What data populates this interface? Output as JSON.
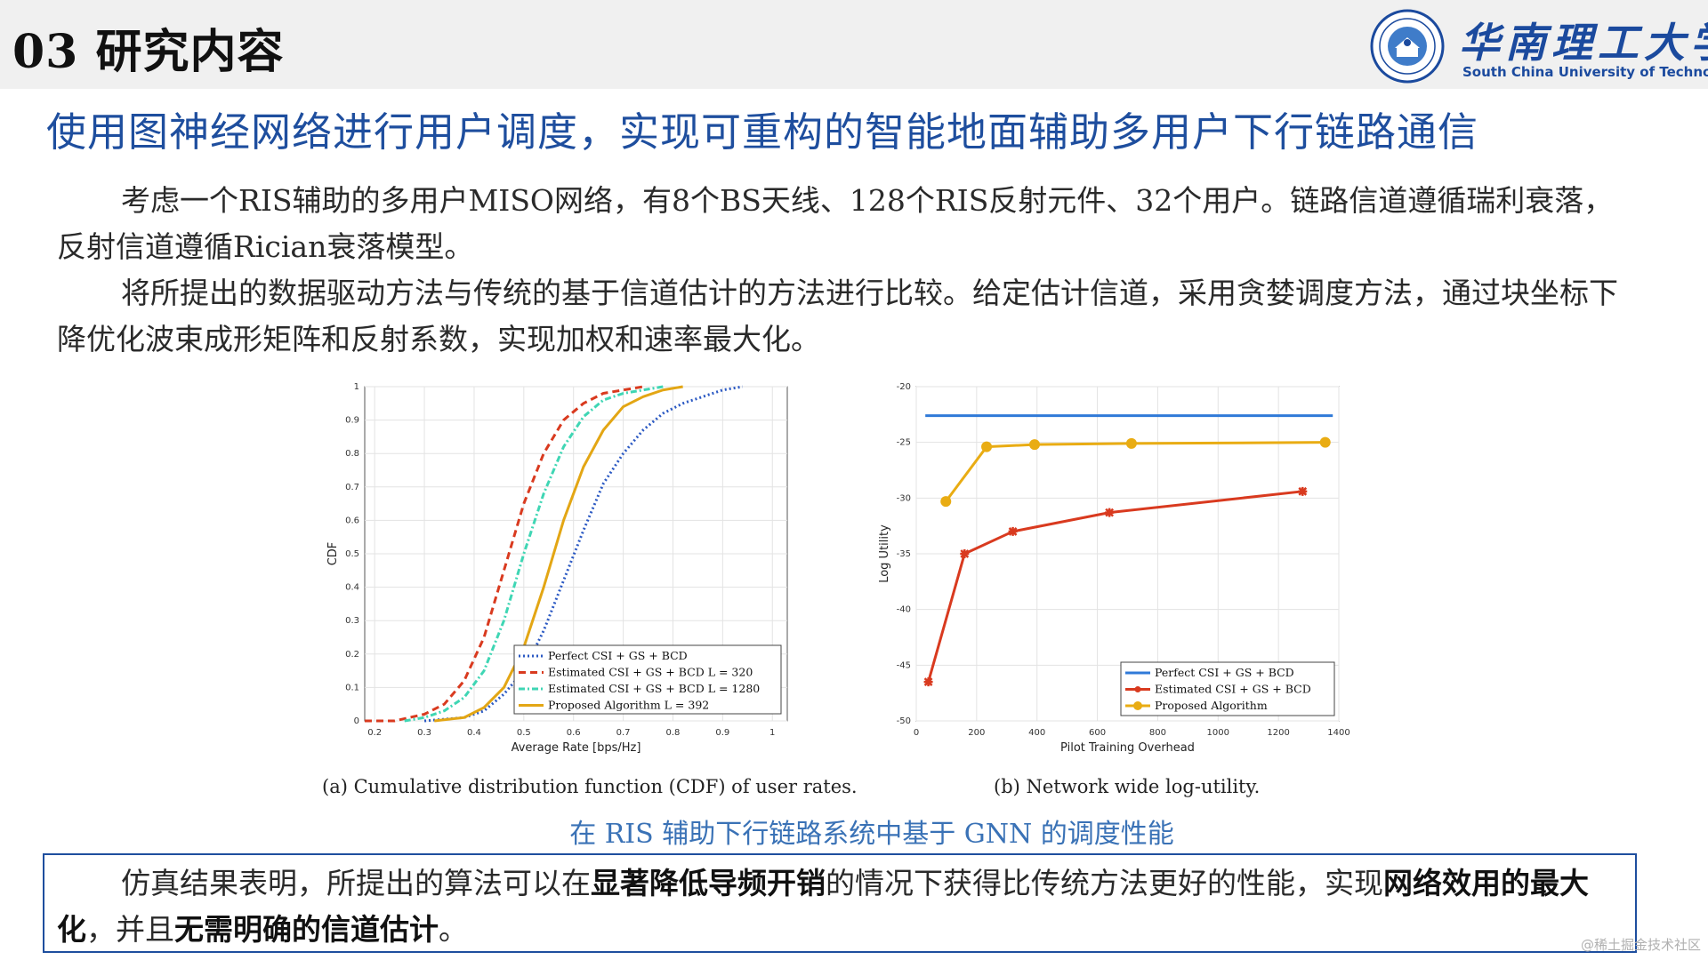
{
  "header": {
    "section_title": "03 研究内容",
    "university_cn": "华南理工大学",
    "university_en": "South China University of Technology"
  },
  "headline": "使用图神经网络进行用户调度，实现可重构的智能地面辅助多用户下行链路通信",
  "paragraphs": [
    "考虑一个RIS辅助的多用户MISO网络，有8个BS天线、128个RIS反射元件、32个用户。链路信道遵循瑞利衰落，反射信道遵循Rician衰落模型。",
    "将所提出的数据驱动方法与传统的基于信道估计的方法进行比较。给定估计信道，采用贪婪调度方法，通过块坐标下降优化波束成形矩阵和反射系数，实现加权和速率最大化。"
  ],
  "figure_caption_a": "(a) Cumulative distribution function (CDF) of user rates.",
  "figure_caption_b": "(b) Network wide log-utility.",
  "figure_title": "在 RIS 辅助下行链路系统中基于 GNN 的调度性能",
  "conclusion": {
    "part1": "仿真结果表明，所提出的算法可以在",
    "bold1": "显著降低导频开销",
    "part2": "的情况下获得比传统方法更好的性能，实现",
    "bold2": "网络效用的最大化",
    "part3": "，并且",
    "bold3": "无需明确的信道估计",
    "part4": "。"
  },
  "watermark": "@稀土掘金技术社区",
  "chart_data": [
    {
      "type": "line",
      "xlabel": "Average Rate [bps/Hz]",
      "ylabel": "CDF",
      "xlim": [
        0.18,
        1.03
      ],
      "ylim": [
        0,
        1
      ],
      "xticks": [
        "0.2",
        "0.3",
        "0.4",
        "0.5",
        "0.6",
        "0.7",
        "0.8",
        "0.9",
        "1"
      ],
      "yticks": [
        "0",
        "0.1",
        "0.2",
        "0.3",
        "0.4",
        "0.5",
        "0.6",
        "0.7",
        "0.8",
        "0.9",
        "1"
      ],
      "grid": true,
      "legend_position": "bottom-right",
      "series": [
        {
          "name": "Perfect CSI + GS + BCD",
          "color": "#2b59c3",
          "dash": "2,3",
          "x": [
            0.3,
            0.38,
            0.42,
            0.46,
            0.5,
            0.54,
            0.58,
            0.62,
            0.66,
            0.7,
            0.74,
            0.78,
            0.82,
            0.86,
            0.9,
            0.94
          ],
          "y": [
            0,
            0.01,
            0.03,
            0.08,
            0.15,
            0.27,
            0.42,
            0.57,
            0.71,
            0.8,
            0.87,
            0.92,
            0.95,
            0.97,
            0.99,
            1
          ]
        },
        {
          "name": "Estimated CSI + GS + BCD L = 320",
          "color": "#d93a1f",
          "dash": "8,5",
          "x": [
            0.18,
            0.24,
            0.3,
            0.34,
            0.38,
            0.42,
            0.46,
            0.5,
            0.54,
            0.58,
            0.62,
            0.66,
            0.7,
            0.74
          ],
          "y": [
            0,
            0,
            0.02,
            0.05,
            0.12,
            0.25,
            0.45,
            0.65,
            0.8,
            0.9,
            0.95,
            0.98,
            0.99,
            1
          ]
        },
        {
          "name": "Estimated CSI + GS + BCD L = 1280",
          "color": "#3fd6b4",
          "dash": "7,3,2,3",
          "x": [
            0.26,
            0.3,
            0.34,
            0.38,
            0.42,
            0.46,
            0.5,
            0.54,
            0.58,
            0.62,
            0.66,
            0.7,
            0.74,
            0.78
          ],
          "y": [
            0,
            0.01,
            0.03,
            0.07,
            0.15,
            0.3,
            0.5,
            0.68,
            0.82,
            0.91,
            0.96,
            0.98,
            0.99,
            1
          ]
        },
        {
          "name": "Proposed Algorithm L = 392",
          "color": "#e3a614",
          "dash": "",
          "x": [
            0.32,
            0.38,
            0.42,
            0.46,
            0.5,
            0.54,
            0.58,
            0.62,
            0.66,
            0.7,
            0.74,
            0.78,
            0.82
          ],
          "y": [
            0,
            0.01,
            0.04,
            0.1,
            0.22,
            0.4,
            0.6,
            0.76,
            0.87,
            0.94,
            0.97,
            0.99,
            1
          ]
        }
      ]
    },
    {
      "type": "line",
      "xlabel": "Pilot Training Overhead",
      "ylabel": "Log Utility",
      "xlim": [
        0,
        1400
      ],
      "ylim": [
        -50,
        -20
      ],
      "xticks": [
        "0",
        "200",
        "400",
        "600",
        "800",
        "1000",
        "1200",
        "1400"
      ],
      "yticks": [
        "-50",
        "-45",
        "-40",
        "-35",
        "-30",
        "-25",
        "-20"
      ],
      "grid": true,
      "legend_position": "bottom-right",
      "series": [
        {
          "name": "Perfect CSI + GS + BCD",
          "color": "#2f7ad8",
          "marker": "none",
          "x": [
            30,
            1380
          ],
          "y": [
            -22.6,
            -22.6
          ]
        },
        {
          "name": "Estimated CSI + GS + BCD",
          "color": "#d93a1f",
          "marker": "star",
          "x": [
            40,
            160,
            320,
            640,
            1280
          ],
          "y": [
            -46.5,
            -35,
            -33,
            -31.3,
            -29.4
          ]
        },
        {
          "name": "Proposed Algorithm",
          "color": "#e9ac13",
          "marker": "circle",
          "x": [
            98,
            233,
            392,
            713,
            1355
          ],
          "y": [
            -30.3,
            -25.4,
            -25.2,
            -25.1,
            -25
          ]
        }
      ]
    }
  ]
}
